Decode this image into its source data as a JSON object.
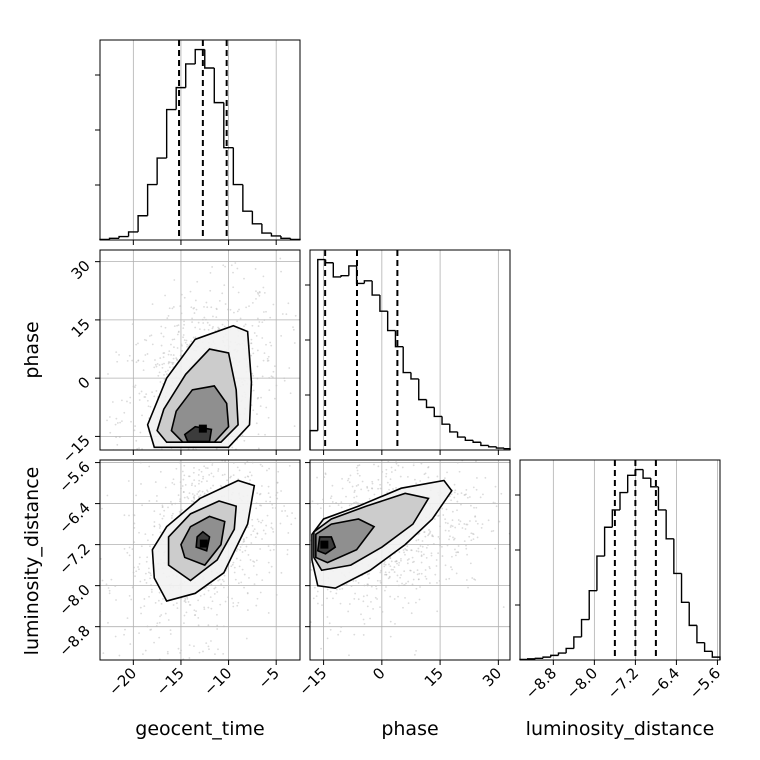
{
  "chart_data": {
    "type": "corner",
    "parameters": [
      "geocent_time",
      "phase",
      "luminosity_distance"
    ],
    "axis_labels": {
      "x": [
        "geocent_time",
        "phase",
        "luminosity_distance"
      ],
      "y": [
        "",
        "phase",
        "luminosity_distance"
      ]
    },
    "ranges": {
      "geocent_time": [
        -23.5,
        -2.5
      ],
      "phase": [
        -18.5,
        33
      ],
      "luminosity_distance": [
        -9.45,
        -5.55
      ]
    },
    "ticks": {
      "geocent_time": [
        -20,
        -15,
        -10,
        -5
      ],
      "phase": [
        -15,
        0,
        15,
        30
      ],
      "luminosity_distance": [
        -8.8,
        -8.0,
        -7.2,
        -6.4,
        -5.6
      ]
    },
    "tick_labels": {
      "geocent_time": [
        "−20",
        "−15",
        "−10",
        "−5"
      ],
      "phase": [
        "−15",
        "0",
        "15",
        "30"
      ],
      "luminosity_distance": [
        "−8.8",
        "−8.0",
        "−7.2",
        "−6.4",
        "−5.6"
      ]
    },
    "grid": true,
    "marginals": {
      "geocent_time": {
        "bin_edges": [
          -23.5,
          -22.5,
          -21.5,
          -20.5,
          -19.5,
          -18.5,
          -17.5,
          -16.5,
          -15.5,
          -14.5,
          -13.5,
          -12.5,
          -11.5,
          -10.5,
          -9.5,
          -8.5,
          -7.5,
          -6.5,
          -5.5,
          -4.5,
          -3.5,
          -2.5
        ],
        "counts": [
          1,
          3,
          6,
          14,
          42,
          96,
          142,
          226,
          264,
          305,
          330,
          298,
          238,
          160,
          96,
          50,
          28,
          12,
          7,
          3,
          1
        ],
        "quantiles": [
          -15.2,
          -12.7,
          -10.2
        ]
      },
      "phase": {
        "bin_edges": [
          -18.5,
          -16.5,
          -14.5,
          -12.5,
          -10.5,
          -8.5,
          -6.5,
          -4.5,
          -2.5,
          -0.5,
          1.5,
          3.5,
          5.5,
          7.5,
          9.5,
          11.5,
          13.5,
          15.5,
          17.5,
          19.5,
          21.5,
          23.5,
          25.5,
          27.5,
          29.5,
          31.5,
          33
        ],
        "counts": [
          30,
          295,
          290,
          268,
          270,
          285,
          258,
          262,
          240,
          215,
          185,
          160,
          120,
          110,
          78,
          66,
          52,
          40,
          28,
          20,
          15,
          12,
          7,
          5,
          3,
          2
        ],
        "quantiles": [
          -14.6,
          -6.4,
          4.0
        ]
      },
      "luminosity_distance": {
        "bin_edges": [
          -9.45,
          -9.3,
          -9.15,
          -9.0,
          -8.85,
          -8.7,
          -8.55,
          -8.4,
          -8.25,
          -8.1,
          -7.95,
          -7.8,
          -7.65,
          -7.5,
          -7.35,
          -7.2,
          -7.05,
          -6.9,
          -6.75,
          -6.6,
          -6.45,
          -6.3,
          -6.15,
          -6.0,
          -5.85,
          -5.7,
          -5.55
        ],
        "counts": [
          1,
          2,
          3,
          5,
          8,
          12,
          20,
          40,
          70,
          120,
          180,
          230,
          260,
          290,
          320,
          330,
          315,
          300,
          260,
          210,
          150,
          100,
          60,
          30,
          15,
          5
        ],
        "quantiles": [
          -7.6,
          -7.2,
          -6.8
        ]
      }
    },
    "joint": [
      {
        "x": "geocent_time",
        "y": "phase",
        "peak": [
          -12.7,
          -13.0
        ],
        "contours": [
          [
            [
              -17.8,
              -17.8
            ],
            [
              -10.0,
              -17.8
            ],
            [
              -7.8,
              -12.0
            ],
            [
              -7.6,
              -1.0
            ],
            [
              -8.0,
              12.0
            ],
            [
              -9.5,
              13.5
            ],
            [
              -13.5,
              10.0
            ],
            [
              -16.5,
              0.0
            ],
            [
              -18.5,
              -12.0
            ]
          ],
          [
            [
              -16.5,
              -16.5
            ],
            [
              -10.8,
              -16.5
            ],
            [
              -9.0,
              -12.0
            ],
            [
              -9.2,
              -3.0
            ],
            [
              -10.0,
              6.5
            ],
            [
              -12.0,
              7.5
            ],
            [
              -14.5,
              1.0
            ],
            [
              -16.8,
              -8.0
            ],
            [
              -17.5,
              -13.5
            ]
          ],
          [
            [
              -14.8,
              -16.5
            ],
            [
              -11.5,
              -16.5
            ],
            [
              -10.0,
              -12.5
            ],
            [
              -10.2,
              -6.5
            ],
            [
              -11.5,
              -2.0
            ],
            [
              -13.8,
              -3.0
            ],
            [
              -15.5,
              -8.5
            ],
            [
              -16.0,
              -13.5
            ]
          ],
          [
            [
              -14.3,
              -16.3
            ],
            [
              -12.0,
              -16.3
            ],
            [
              -11.8,
              -13.2
            ],
            [
              -13.5,
              -12.5
            ],
            [
              -14.6,
              -14.5
            ]
          ]
        ]
      },
      {
        "x": "geocent_time",
        "y": "luminosity_distance",
        "peak": [
          -12.6,
          -7.18
        ],
        "contours": [
          [
            [
              -17.8,
              -7.85
            ],
            [
              -16.5,
              -8.3
            ],
            [
              -13.5,
              -8.15
            ],
            [
              -10.5,
              -7.75
            ],
            [
              -8.0,
              -6.8
            ],
            [
              -7.3,
              -6.05
            ],
            [
              -9.0,
              -5.95
            ],
            [
              -13.0,
              -6.3
            ],
            [
              -16.5,
              -6.85
            ],
            [
              -18.0,
              -7.3
            ]
          ],
          [
            [
              -16.3,
              -7.6
            ],
            [
              -14.0,
              -7.9
            ],
            [
              -11.2,
              -7.5
            ],
            [
              -9.4,
              -6.9
            ],
            [
              -9.2,
              -6.45
            ],
            [
              -11.0,
              -6.35
            ],
            [
              -14.0,
              -6.6
            ],
            [
              -16.3,
              -7.05
            ]
          ],
          [
            [
              -14.6,
              -7.45
            ],
            [
              -12.5,
              -7.6
            ],
            [
              -10.8,
              -7.2
            ],
            [
              -10.4,
              -6.75
            ],
            [
              -12.0,
              -6.65
            ],
            [
              -14.0,
              -6.85
            ],
            [
              -15.0,
              -7.2
            ]
          ],
          [
            [
              -13.4,
              -7.25
            ],
            [
              -12.3,
              -7.32
            ],
            [
              -12.0,
              -7.05
            ],
            [
              -12.7,
              -6.95
            ],
            [
              -13.3,
              -7.05
            ]
          ]
        ]
      },
      {
        "x": "phase",
        "y": "luminosity_distance",
        "peak": [
          -14.8,
          -7.2
        ],
        "contours": [
          [
            [
              -18.0,
              -7.5
            ],
            [
              -16.5,
              -8.0
            ],
            [
              -12.0,
              -8.05
            ],
            [
              -3.0,
              -7.7
            ],
            [
              6.0,
              -7.2
            ],
            [
              13.0,
              -6.7
            ],
            [
              18.0,
              -6.15
            ],
            [
              16.0,
              -5.95
            ],
            [
              5.0,
              -6.1
            ],
            [
              -6.0,
              -6.45
            ],
            [
              -15.0,
              -6.7
            ],
            [
              -18.0,
              -7.0
            ]
          ],
          [
            [
              -17.5,
              -7.45
            ],
            [
              -15.5,
              -7.7
            ],
            [
              -8.0,
              -7.6
            ],
            [
              0.0,
              -7.25
            ],
            [
              8.0,
              -6.8
            ],
            [
              12.0,
              -6.3
            ],
            [
              6.0,
              -6.2
            ],
            [
              -4.0,
              -6.45
            ],
            [
              -13.0,
              -6.7
            ],
            [
              -17.5,
              -6.95
            ]
          ],
          [
            [
              -17.0,
              -7.45
            ],
            [
              -14.0,
              -7.55
            ],
            [
              -6.5,
              -7.3
            ],
            [
              -2.0,
              -6.85
            ],
            [
              -6.0,
              -6.7
            ],
            [
              -13.0,
              -6.8
            ],
            [
              -17.0,
              -7.0
            ]
          ],
          [
            [
              -16.5,
              -7.32
            ],
            [
              -14.5,
              -7.38
            ],
            [
              -12.0,
              -7.25
            ],
            [
              -13.0,
              -7.05
            ],
            [
              -16.0,
              -7.05
            ]
          ]
        ]
      }
    ]
  }
}
